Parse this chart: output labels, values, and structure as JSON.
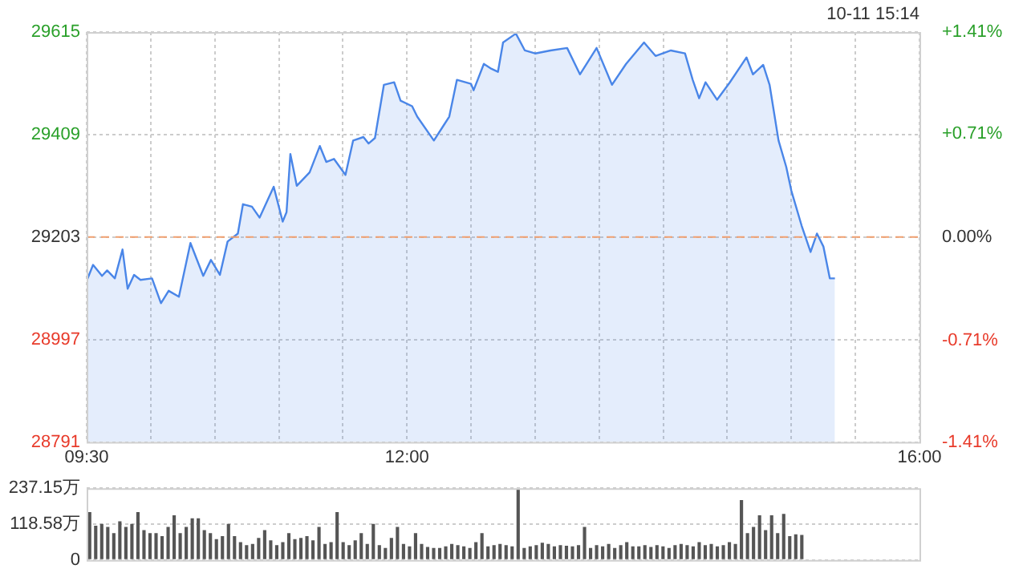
{
  "chart_data": [
    {
      "type": "area",
      "annotations": [
        "10-11 15:14"
      ],
      "marker": "none",
      "grid": true,
      "line_style": "solid",
      "xlim": [
        9.5,
        16
      ],
      "xticks": [
        {
          "value": 9.5,
          "label": "09:30"
        },
        {
          "value": 10,
          "label": null
        },
        {
          "value": 10.5,
          "label": null
        },
        {
          "value": 11,
          "label": null
        },
        {
          "value": 11.5,
          "label": null
        },
        {
          "value": 12,
          "label": "12:00"
        },
        {
          "value": 12.5,
          "label": null
        },
        {
          "value": 13,
          "label": null
        },
        {
          "value": 13.5,
          "label": null
        },
        {
          "value": 14,
          "label": null
        },
        {
          "value": 14.5,
          "label": null
        },
        {
          "value": 15,
          "label": null
        },
        {
          "value": 15.5,
          "label": null
        },
        {
          "value": 16,
          "label": "16:00"
        }
      ],
      "ylim": [
        28791,
        29615
      ],
      "yticks": [
        28791,
        28997,
        29203,
        29409,
        29615
      ],
      "y2lim": [
        -1.41,
        1.41
      ],
      "y2ticks": [
        {
          "value": -1.41,
          "label": "-1.41%"
        },
        {
          "value": -0.71,
          "label": "-0.71%"
        },
        {
          "value": 0,
          "label": "0.00%"
        },
        {
          "value": 0.71,
          "label": "+0.71%"
        },
        {
          "value": 1.41,
          "label": "+1.41%"
        }
      ],
      "ref_lines": [
        {
          "axis": "y",
          "value": 29203,
          "color": "#f0a070",
          "line_style": "dashed"
        }
      ],
      "series": [
        {
          "color": "#4a86e8",
          "x": [
            9.5,
            9.55,
            9.62,
            9.66,
            9.72,
            9.78,
            9.82,
            9.87,
            9.92,
            10.01,
            10.08,
            10.14,
            10.22,
            10.31,
            10.41,
            10.47,
            10.54,
            10.6,
            10.68,
            10.72,
            10.79,
            10.85,
            10.91,
            10.96,
            11.03,
            11.06,
            11.09,
            11.14,
            11.24,
            11.32,
            11.37,
            11.43,
            11.52,
            11.58,
            11.66,
            11.7,
            11.75,
            11.82,
            11.9,
            11.95,
            12.04,
            12.08,
            12.21,
            12.29,
            12.33,
            12.39,
            12.5,
            12.52,
            12.6,
            12.66,
            12.71,
            12.75,
            12.85,
            12.92,
            13.0,
            13.12,
            13.25,
            13.35,
            13.48,
            13.6,
            13.71,
            13.85,
            13.94,
            14.06,
            14.17,
            14.23,
            14.28,
            14.33,
            14.42,
            14.52,
            14.65,
            14.7,
            14.78,
            14.83,
            14.9,
            14.96,
            15.0,
            15.08,
            15.15,
            15.2,
            15.25,
            15.3,
            15.34
          ],
          "values": [
            29115,
            29147,
            29125,
            29136,
            29120,
            29178,
            29099,
            29127,
            29117,
            29120,
            29070,
            29095,
            29083,
            29191,
            29125,
            29157,
            29127,
            29194,
            29210,
            29269,
            29264,
            29242,
            29276,
            29304,
            29234,
            29253,
            29370,
            29306,
            29333,
            29386,
            29354,
            29360,
            29328,
            29397,
            29404,
            29391,
            29402,
            29509,
            29514,
            29477,
            29466,
            29445,
            29397,
            29429,
            29445,
            29519,
            29511,
            29498,
            29551,
            29541,
            29535,
            29594,
            29612,
            29578,
            29572,
            29578,
            29583,
            29530,
            29583,
            29509,
            29551,
            29594,
            29567,
            29578,
            29572,
            29519,
            29482,
            29514,
            29479,
            29514,
            29564,
            29530,
            29549,
            29509,
            29397,
            29344,
            29296,
            29226,
            29173,
            29210,
            29184,
            29120,
            29120
          ]
        }
      ]
    },
    {
      "type": "bar",
      "grid": "y",
      "color": "#555555",
      "ylim": [
        0,
        237.15
      ],
      "yticks": [
        0,
        {
          "value": 118.58,
          "label": "118.58万"
        },
        {
          "value": 237.15,
          "label": "237.15万"
        }
      ],
      "categories": [
        null,
        null,
        null,
        null,
        null,
        null,
        null,
        null,
        null,
        null,
        null,
        null,
        null,
        null,
        null,
        null,
        null,
        null,
        null,
        null,
        null,
        null,
        null,
        null,
        null,
        null,
        null,
        null,
        null,
        null,
        null,
        null,
        null,
        null,
        null,
        null,
        null,
        null,
        null,
        null,
        null,
        null,
        null,
        null,
        null,
        null,
        null,
        null,
        null,
        null,
        null,
        null,
        null,
        null,
        null,
        null,
        null,
        null,
        null,
        null,
        null,
        null,
        null,
        null,
        null,
        null,
        null,
        null,
        null,
        null,
        null,
        null,
        null,
        null,
        null,
        null,
        null,
        null,
        null,
        null,
        null,
        null,
        null,
        null,
        null,
        null,
        null,
        null,
        null,
        null,
        null,
        null,
        null,
        null,
        null,
        null,
        null,
        null,
        null,
        null,
        null,
        null,
        null,
        null,
        null,
        null,
        null,
        null,
        null,
        null,
        null,
        null,
        null,
        null,
        null,
        null,
        null,
        null,
        null,
        null,
        null,
        null,
        null,
        null,
        null,
        null,
        null,
        null,
        null,
        null,
        null,
        null,
        null,
        null,
        null,
        null,
        null,
        null
      ],
      "values": [
        158,
        113,
        119,
        109,
        89,
        128,
        109,
        119,
        158,
        99,
        89,
        89,
        79,
        109,
        148,
        89,
        109,
        138,
        138,
        99,
        89,
        69,
        79,
        119,
        79,
        59,
        49,
        53,
        73,
        99,
        65,
        49,
        59,
        89,
        69,
        73,
        79,
        65,
        109,
        53,
        59,
        158,
        59,
        49,
        65,
        89,
        53,
        119,
        49,
        40,
        73,
        109,
        53,
        45,
        89,
        53,
        43,
        40,
        40,
        45,
        53,
        49,
        45,
        40,
        59,
        89,
        45,
        49,
        53,
        49,
        45,
        235,
        40,
        45,
        49,
        57,
        53,
        45,
        49,
        47,
        45,
        49,
        109,
        40,
        49,
        45,
        53,
        40,
        49,
        59,
        45,
        45,
        49,
        43,
        49,
        45,
        40,
        49,
        53,
        49,
        45,
        59,
        49,
        53,
        45,
        49,
        59,
        53,
        198,
        89,
        109,
        148,
        99,
        148,
        89,
        152,
        79,
        85,
        83,
        null,
        null,
        null,
        null,
        null,
        null,
        null,
        null,
        null,
        null,
        null,
        null,
        null,
        null,
        null,
        null,
        null,
        null,
        null
      ]
    }
  ]
}
